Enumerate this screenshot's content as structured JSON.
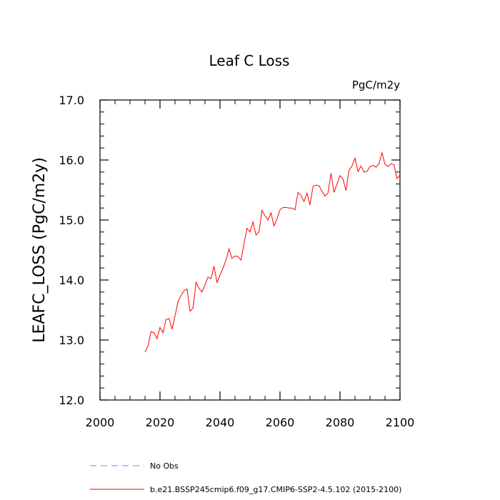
{
  "chart_data": {
    "type": "line",
    "title": "Leaf C Loss",
    "units_label": "PgC/m2y",
    "ylabel": "LEAFC_LOSS  (PgC/m2y)",
    "xlabel": "",
    "xlim": [
      2000,
      2100
    ],
    "ylim": [
      12.0,
      17.0
    ],
    "x_ticks": [
      "2000",
      "2020",
      "2040",
      "2060",
      "2080",
      "2100"
    ],
    "y_ticks": [
      "12.0",
      "13.0",
      "14.0",
      "15.0",
      "16.0",
      "17.0"
    ],
    "grid": false,
    "series": [
      {
        "name": "b.e21.BSSP245cmip6.f09_g17.CMIP6-SSP2-4.5.102 (2015-2100)",
        "color": "#ff0000",
        "style": "solid",
        "x": [
          2015,
          2016,
          2017,
          2018,
          2019,
          2020,
          2021,
          2022,
          2023,
          2024,
          2025,
          2026,
          2027,
          2028,
          2029,
          2030,
          2031,
          2032,
          2033,
          2034,
          2035,
          2036,
          2037,
          2038,
          2039,
          2040,
          2041,
          2042,
          2043,
          2044,
          2045,
          2046,
          2047,
          2048,
          2049,
          2050,
          2051,
          2052,
          2053,
          2054,
          2055,
          2056,
          2057,
          2058,
          2059,
          2060,
          2061,
          2062,
          2063,
          2064,
          2065,
          2066,
          2067,
          2068,
          2069,
          2070,
          2071,
          2072,
          2073,
          2074,
          2075,
          2076,
          2077,
          2078,
          2079,
          2080,
          2081,
          2082,
          2083,
          2084,
          2085,
          2086,
          2087,
          2088,
          2089,
          2090,
          2091,
          2092,
          2093,
          2094,
          2095,
          2096,
          2097,
          2098,
          2099,
          2100
        ],
        "y": [
          12.8,
          12.9,
          13.14,
          13.12,
          13.02,
          13.21,
          13.12,
          13.34,
          13.36,
          13.18,
          13.4,
          13.64,
          13.74,
          13.82,
          13.85,
          13.48,
          13.53,
          13.96,
          13.86,
          13.8,
          13.92,
          14.05,
          14.02,
          14.23,
          13.96,
          14.08,
          14.2,
          14.33,
          14.52,
          14.36,
          14.4,
          14.39,
          14.33,
          14.61,
          14.86,
          14.8,
          14.97,
          14.75,
          14.8,
          15.16,
          15.07,
          15.0,
          15.12,
          14.9,
          15.02,
          15.17,
          15.21,
          15.21,
          15.2,
          15.2,
          15.17,
          15.46,
          15.41,
          15.31,
          15.45,
          15.25,
          15.56,
          15.58,
          15.57,
          15.48,
          15.4,
          15.45,
          15.78,
          15.46,
          15.6,
          15.74,
          15.68,
          15.49,
          15.83,
          15.9,
          16.03,
          15.81,
          15.9,
          15.8,
          15.81,
          15.89,
          15.91,
          15.88,
          15.94,
          16.12,
          15.93,
          15.89,
          15.94,
          15.92,
          15.69,
          15.75
        ]
      },
      {
        "name": "No Obs",
        "color": "#8080ff",
        "style": "dashed",
        "x": [],
        "y": []
      }
    ]
  }
}
